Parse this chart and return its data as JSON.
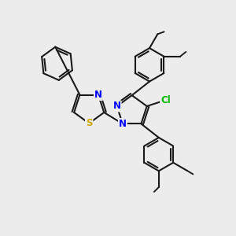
{
  "background_color": "#ececec",
  "bond_color": "#1a1a1a",
  "bond_width": 1.5,
  "atom_colors": {
    "N": "#0000ff",
    "S": "#ccaa00",
    "Cl": "#00bb00",
    "C": "#1a1a1a"
  },
  "font_size_atom": 8.5,
  "figsize": [
    3.0,
    3.0
  ],
  "dpi": 100,
  "xlim": [
    0,
    10
  ],
  "ylim": [
    0,
    10
  ]
}
